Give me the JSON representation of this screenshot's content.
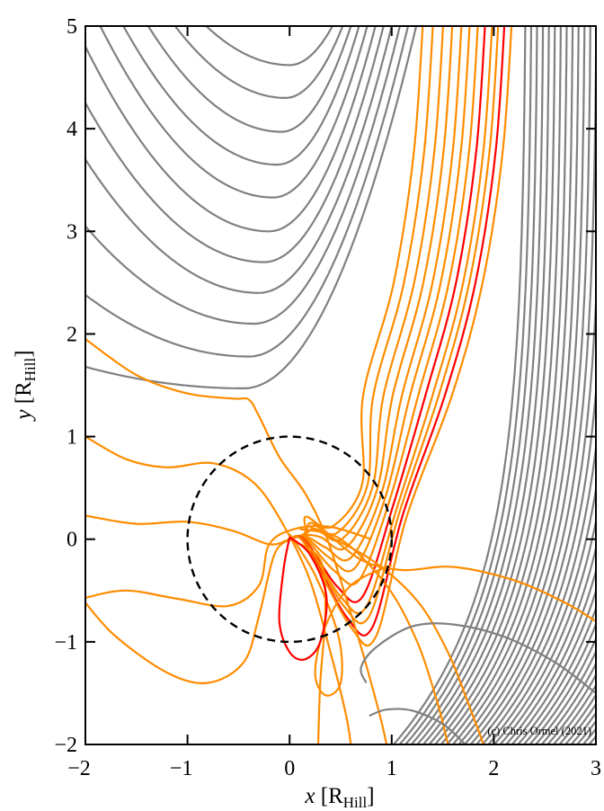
{
  "chart_data": {
    "type": "line",
    "title": "",
    "xlabel": "x",
    "xlabel_sub": "Hill",
    "ylabel": "y",
    "ylabel_sub": "Hill",
    "xunit_prefix": "[R",
    "xunit_suffix": "]",
    "xlim": [
      -2,
      3
    ],
    "ylim": [
      -2,
      5
    ],
    "xticks": [
      -2,
      -1,
      0,
      1,
      2,
      3
    ],
    "yticks": [
      -2,
      -1,
      0,
      1,
      2,
      3,
      4,
      5
    ],
    "xtick_labels": [
      "−2",
      "−1",
      "0",
      "1",
      "2",
      "3"
    ],
    "ytick_labels": [
      "−2",
      "−1",
      "0",
      "1",
      "2",
      "3",
      "4",
      "5"
    ],
    "credit": "(c) Chris Ormel (2021)",
    "colors": {
      "gray": "#808080",
      "orange": "#ff8c00",
      "red": "#ff0000",
      "hill": "#000000"
    },
    "hill_sphere": {
      "center": [
        0,
        0
      ],
      "radius": 1,
      "style": "dashed"
    },
    "gray_u_curves": [
      {
        "min": [
          0.0,
          4.62
        ],
        "y_at_left": 6.9,
        "x_at_top": 0.42
      },
      {
        "min": [
          -0.04,
          4.3
        ],
        "y_at_left": 6.6,
        "x_at_top": 0.52
      },
      {
        "min": [
          -0.08,
          3.97
        ],
        "y_at_left": 6.2,
        "x_at_top": 0.6
      },
      {
        "min": [
          -0.12,
          3.65
        ],
        "y_at_left": 5.75,
        "x_at_top": 0.68
      },
      {
        "min": [
          -0.16,
          3.33
        ],
        "y_at_left": 5.3,
        "x_at_top": 0.76
      },
      {
        "min": [
          -0.2,
          3.0
        ],
        "y_at_left": 4.8,
        "x_at_top": 0.84
      },
      {
        "min": [
          -0.25,
          2.7
        ],
        "y_at_left": 4.25,
        "x_at_top": 0.92
      },
      {
        "min": [
          -0.3,
          2.4
        ],
        "y_at_left": 3.7,
        "x_at_top": 1.0
      },
      {
        "min": [
          -0.35,
          2.1
        ],
        "y_at_left": 3.05,
        "x_at_top": 1.08
      },
      {
        "min": [
          -0.4,
          1.78
        ],
        "y_at_left": 2.38,
        "x_at_top": 1.16
      },
      {
        "min": [
          -0.45,
          1.47
        ],
        "y_at_left": 1.68,
        "x_at_top": 1.24
      }
    ],
    "orange_inflow_curves": [
      {
        "x_top": 1.32,
        "y_min": 0.12,
        "color": "orange"
      },
      {
        "x_top": 1.42,
        "y_min": 0.06,
        "color": "orange"
      },
      {
        "x_top": 1.52,
        "y_min": 0.0,
        "color": "orange"
      },
      {
        "x_top": 1.61,
        "y_min": -0.08,
        "color": "orange"
      },
      {
        "x_top": 1.7,
        "y_min": -0.18,
        "color": "orange"
      },
      {
        "x_top": 1.78,
        "y_min": -0.28,
        "color": "orange"
      },
      {
        "x_top": 1.86,
        "y_min": -0.4,
        "color": "orange"
      },
      {
        "x_top": 1.93,
        "y_min": -0.56,
        "color": "red"
      },
      {
        "x_top": 2.0,
        "y_min": -0.66,
        "color": "orange"
      },
      {
        "x_top": 2.06,
        "y_min": -0.75,
        "color": "orange"
      },
      {
        "x_top": 2.12,
        "y_min": -0.86,
        "color": "red"
      },
      {
        "x_top": 2.19,
        "y_min": -0.95,
        "color": "orange"
      }
    ],
    "gray_shear_lines": {
      "x_at_bottom_start": 1.02,
      "x_at_bottom_step": 0.058,
      "count": 60
    },
    "series": [
      {
        "name": "orange-a",
        "color": "orange",
        "points": [
          [
            -2,
            1.95
          ],
          [
            -1.5,
            1.6
          ],
          [
            -1,
            1.42
          ],
          [
            -0.55,
            1.37
          ],
          [
            -0.4,
            1.36
          ],
          [
            -0.3,
            1.2
          ],
          [
            -0.1,
            0.8
          ],
          [
            0.15,
            0.45
          ],
          [
            0.35,
            0.05
          ],
          [
            0.5,
            -0.4
          ],
          [
            0.7,
            -1.05
          ],
          [
            0.88,
            -1.7
          ],
          [
            0.95,
            -2
          ]
        ]
      },
      {
        "name": "orange-b",
        "color": "orange",
        "points": [
          [
            -2,
            1.0
          ],
          [
            -1.6,
            0.78
          ],
          [
            -1.2,
            0.7
          ],
          [
            -0.75,
            0.74
          ],
          [
            -0.35,
            0.55
          ],
          [
            -0.05,
            0.12
          ],
          [
            0.2,
            -0.4
          ],
          [
            0.4,
            -1.1
          ],
          [
            0.55,
            -1.7
          ],
          [
            0.6,
            -2
          ]
        ]
      },
      {
        "name": "orange-c",
        "color": "orange",
        "points": [
          [
            -2,
            0.23
          ],
          [
            -1.5,
            0.15
          ],
          [
            -1,
            0.17
          ],
          [
            -0.55,
            0.08
          ],
          [
            -0.2,
            -0.05
          ],
          [
            0,
            0
          ]
        ]
      },
      {
        "name": "orange-d",
        "color": "orange",
        "points": [
          [
            -2,
            -0.57
          ],
          [
            -1.6,
            -0.5
          ],
          [
            -1.1,
            -0.58
          ],
          [
            -0.6,
            -0.65
          ],
          [
            -0.3,
            -0.45
          ],
          [
            -0.2,
            -0.05
          ],
          [
            0.05,
            0.1
          ],
          [
            0.4,
            0.12
          ],
          [
            0.8,
            0.0
          ]
        ]
      },
      {
        "name": "orange-e",
        "color": "orange",
        "points": [
          [
            -2,
            -0.62
          ],
          [
            -1.7,
            -0.95
          ],
          [
            -1.2,
            -1.3
          ],
          [
            -0.8,
            -1.4
          ],
          [
            -0.45,
            -1.2
          ],
          [
            -0.3,
            -0.75
          ],
          [
            -0.15,
            -0.15
          ],
          [
            0,
            0
          ]
        ]
      },
      {
        "name": "orange-f",
        "color": "orange",
        "points": [
          [
            0,
            0.05
          ],
          [
            0.25,
            -0.35
          ],
          [
            0.48,
            -0.95
          ],
          [
            0.5,
            -1.4
          ],
          [
            0.35,
            -1.52
          ],
          [
            0.25,
            -1.3
          ],
          [
            0.35,
            -0.85
          ],
          [
            0.6,
            -0.45
          ],
          [
            1.0,
            -0.25
          ]
        ]
      },
      {
        "name": "orange-g",
        "color": "orange",
        "points": [
          [
            0.3,
            0.12
          ],
          [
            0.7,
            -0.2
          ],
          [
            1.1,
            -0.3
          ],
          [
            1.6,
            -0.27
          ],
          [
            2.2,
            -0.4
          ],
          [
            2.7,
            -0.62
          ],
          [
            3,
            -0.8
          ]
        ]
      },
      {
        "name": "orange-h",
        "color": "orange",
        "points": [
          [
            0.2,
            0.12
          ],
          [
            0.8,
            -0.2
          ],
          [
            1.25,
            -0.6
          ],
          [
            1.55,
            -1.1
          ],
          [
            1.75,
            -1.6
          ],
          [
            1.9,
            -2
          ]
        ]
      },
      {
        "name": "orange-i",
        "color": "orange",
        "points": [
          [
            0.1,
            0.1
          ],
          [
            0.5,
            0.0
          ],
          [
            0.95,
            -0.45
          ],
          [
            1.25,
            -1.0
          ],
          [
            1.45,
            -1.6
          ],
          [
            1.55,
            -2
          ]
        ]
      },
      {
        "name": "orange-j",
        "color": "orange",
        "points": [
          [
            0.0,
            0.0
          ],
          [
            0.3,
            -0.2
          ],
          [
            0.35,
            -0.7
          ],
          [
            0.3,
            -1.4
          ],
          [
            0.28,
            -2
          ]
        ]
      },
      {
        "name": "red-loop",
        "color": "red",
        "points": [
          [
            0,
            0.02
          ],
          [
            -0.06,
            -0.3
          ],
          [
            -0.1,
            -0.8
          ],
          [
            0.0,
            -1.1
          ],
          [
            0.15,
            -1.17
          ],
          [
            0.3,
            -1.0
          ],
          [
            0.36,
            -0.55
          ],
          [
            0.2,
            -0.15
          ],
          [
            0,
            0.02
          ]
        ]
      },
      {
        "name": "gray-loop",
        "color": "gray",
        "points": [
          [
            0.75,
            -1.4
          ],
          [
            0.7,
            -1.25
          ],
          [
            0.85,
            -1.05
          ],
          [
            1.2,
            -0.85
          ],
          [
            1.6,
            -0.83
          ],
          [
            2.1,
            -0.95
          ],
          [
            2.6,
            -1.2
          ],
          [
            3,
            -1.5
          ]
        ]
      },
      {
        "name": "gray-bottom",
        "color": "gray",
        "points": [
          [
            0.78,
            -1.72
          ],
          [
            0.95,
            -1.66
          ],
          [
            1.2,
            -1.67
          ],
          [
            1.5,
            -1.8
          ],
          [
            1.72,
            -2
          ]
        ]
      }
    ]
  }
}
